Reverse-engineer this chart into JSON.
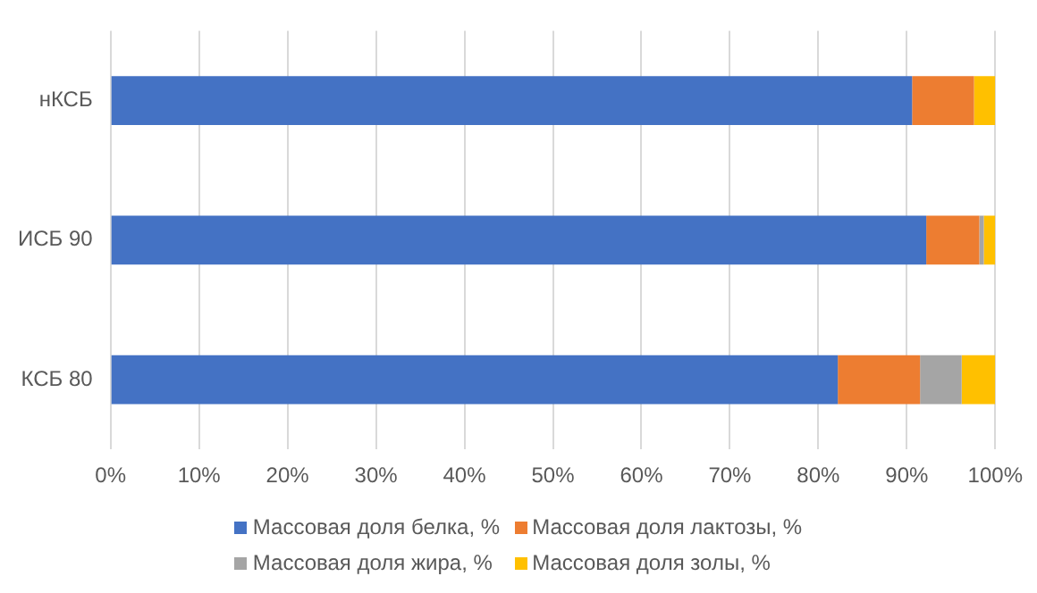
{
  "chart_data": {
    "type": "bar",
    "orientation": "horizontal",
    "stacked": true,
    "categories": [
      "нКСБ",
      "ИСБ 90",
      "КСБ 80"
    ],
    "series": [
      {
        "name": "Массовая доля белка, %",
        "color": "#4472c4",
        "values": [
          90.6,
          92.2,
          82.2
        ]
      },
      {
        "name": "Массовая доля лактозы, %",
        "color": "#ed7d31",
        "values": [
          7.0,
          6.0,
          9.3
        ]
      },
      {
        "name": "Массовая доля жира, %",
        "color": "#a5a5a5",
        "values": [
          0,
          0.5,
          4.7
        ]
      },
      {
        "name": "Массовая доля золы, %",
        "color": "#ffc000",
        "values": [
          2.4,
          1.3,
          3.8
        ]
      }
    ],
    "xlim": [
      0,
      100
    ],
    "xticks": [
      {
        "value": 0,
        "label": "0%"
      },
      {
        "value": 10,
        "label": "10%"
      },
      {
        "value": 20,
        "label": "20%"
      },
      {
        "value": 30,
        "label": "30%"
      },
      {
        "value": 40,
        "label": "40%"
      },
      {
        "value": 50,
        "label": "50%"
      },
      {
        "value": 60,
        "label": "60%"
      },
      {
        "value": 70,
        "label": "70%"
      },
      {
        "value": 80,
        "label": "80%"
      },
      {
        "value": 90,
        "label": "90%"
      },
      {
        "value": 100,
        "label": "100%"
      }
    ],
    "grid": "x",
    "legend": "bottom"
  }
}
